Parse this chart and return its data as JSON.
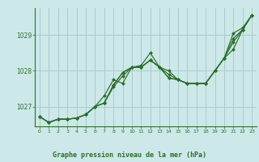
{
  "title": "Graphe pression niveau de la mer (hPa)",
  "bg_color": "#cce8e8",
  "grid_color": "#aacccc",
  "line_color": "#2d6e2d",
  "marker_color": "#2d6e2d",
  "xlim": [
    -0.5,
    23.5
  ],
  "ylim": [
    1026.45,
    1029.75
  ],
  "yticks": [
    1027,
    1028,
    1029
  ],
  "xticks": [
    0,
    1,
    2,
    3,
    4,
    5,
    6,
    7,
    8,
    9,
    10,
    11,
    12,
    13,
    14,
    15,
    16,
    17,
    18,
    19,
    20,
    21,
    22,
    23
  ],
  "series": [
    [
      1026.72,
      1026.56,
      1026.65,
      1026.65,
      1026.68,
      1026.78,
      1027.0,
      1027.1,
      1027.6,
      1027.95,
      1028.1,
      1028.1,
      1028.3,
      1028.1,
      1027.8,
      1027.75,
      1027.65,
      1027.65,
      1027.65,
      1028.0,
      1028.35,
      1028.8,
      1029.15,
      1029.55
    ],
    [
      1026.72,
      1026.56,
      1026.65,
      1026.65,
      1026.68,
      1026.78,
      1027.0,
      1027.3,
      1027.75,
      1027.65,
      1028.1,
      1028.15,
      1028.5,
      1028.1,
      1028.0,
      1027.75,
      1027.65,
      1027.65,
      1027.65,
      1028.0,
      1028.35,
      1029.05,
      1029.2,
      1029.55
    ],
    [
      1026.72,
      1026.56,
      1026.65,
      1026.65,
      1026.68,
      1026.78,
      1027.0,
      1027.1,
      1027.55,
      1027.85,
      1028.1,
      1028.1,
      1028.3,
      1028.1,
      1027.8,
      1027.75,
      1027.65,
      1027.65,
      1027.65,
      1028.0,
      1028.35,
      1028.6,
      1029.15,
      1029.55
    ],
    [
      1026.72,
      1026.56,
      1026.65,
      1026.65,
      1026.68,
      1026.78,
      1027.0,
      1027.1,
      1027.6,
      1027.95,
      1028.1,
      1028.1,
      1028.3,
      1028.1,
      1027.9,
      1027.75,
      1027.65,
      1027.65,
      1027.65,
      1028.0,
      1028.35,
      1028.9,
      1029.15,
      1029.55
    ]
  ]
}
